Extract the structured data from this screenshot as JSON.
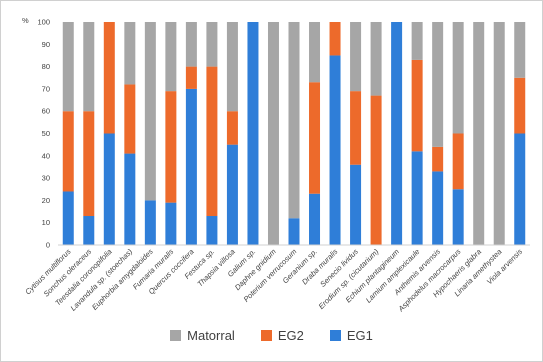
{
  "chart_data": {
    "type": "bar",
    "stacked": true,
    "ylabel": "%",
    "ylim": [
      0,
      100
    ],
    "yticks": [
      0,
      10,
      20,
      30,
      40,
      50,
      60,
      70,
      80,
      90,
      100
    ],
    "grid": false,
    "legend_position": "bottom",
    "categories": [
      "Cytisus multiflorus",
      "Sonchus oleraceus",
      "Teesdalia coronopifolia",
      "Lavandula sp. (stoechas)",
      "Euphorbia amygdaloides",
      "Fumaria muralis",
      "Quercus coccifera",
      "Festuca sp.",
      "Thapsia villosa",
      "Galium sp.",
      "Daphne gnidium",
      "Poterium verrucosum",
      "Geranium sp.",
      "Draba muralis",
      "Senecio lividus",
      "Erodium sp. (cicutarium)",
      "Echium plantagineum",
      "Lamium amplexicaule",
      "Anthemis arvensis",
      "Asphodelus macrocarpus",
      "Hypochaeris glabra",
      "Linaria amethystea",
      "Viola arvensis"
    ],
    "series": [
      {
        "name": "EG1",
        "color": "#2f7ed8",
        "values": [
          24,
          13,
          50,
          41,
          20,
          19,
          70,
          13,
          45,
          100,
          0,
          12,
          23,
          85,
          36,
          0,
          100,
          42,
          33,
          25,
          0,
          0,
          50
        ]
      },
      {
        "name": "EG2",
        "color": "#ed6a2b",
        "values": [
          36,
          47,
          50,
          31,
          0,
          50,
          10,
          67,
          15,
          0,
          0,
          0,
          50,
          15,
          33,
          67,
          0,
          41,
          11,
          25,
          0,
          0,
          25
        ]
      },
      {
        "name": "Matorral",
        "color": "#a6a6a6",
        "values": [
          40,
          40,
          0,
          28,
          80,
          31,
          20,
          20,
          40,
          0,
          100,
          88,
          27,
          0,
          31,
          33,
          0,
          17,
          56,
          50,
          100,
          100,
          25
        ]
      }
    ],
    "legend_order": [
      "Matorral",
      "EG2",
      "EG1"
    ]
  }
}
